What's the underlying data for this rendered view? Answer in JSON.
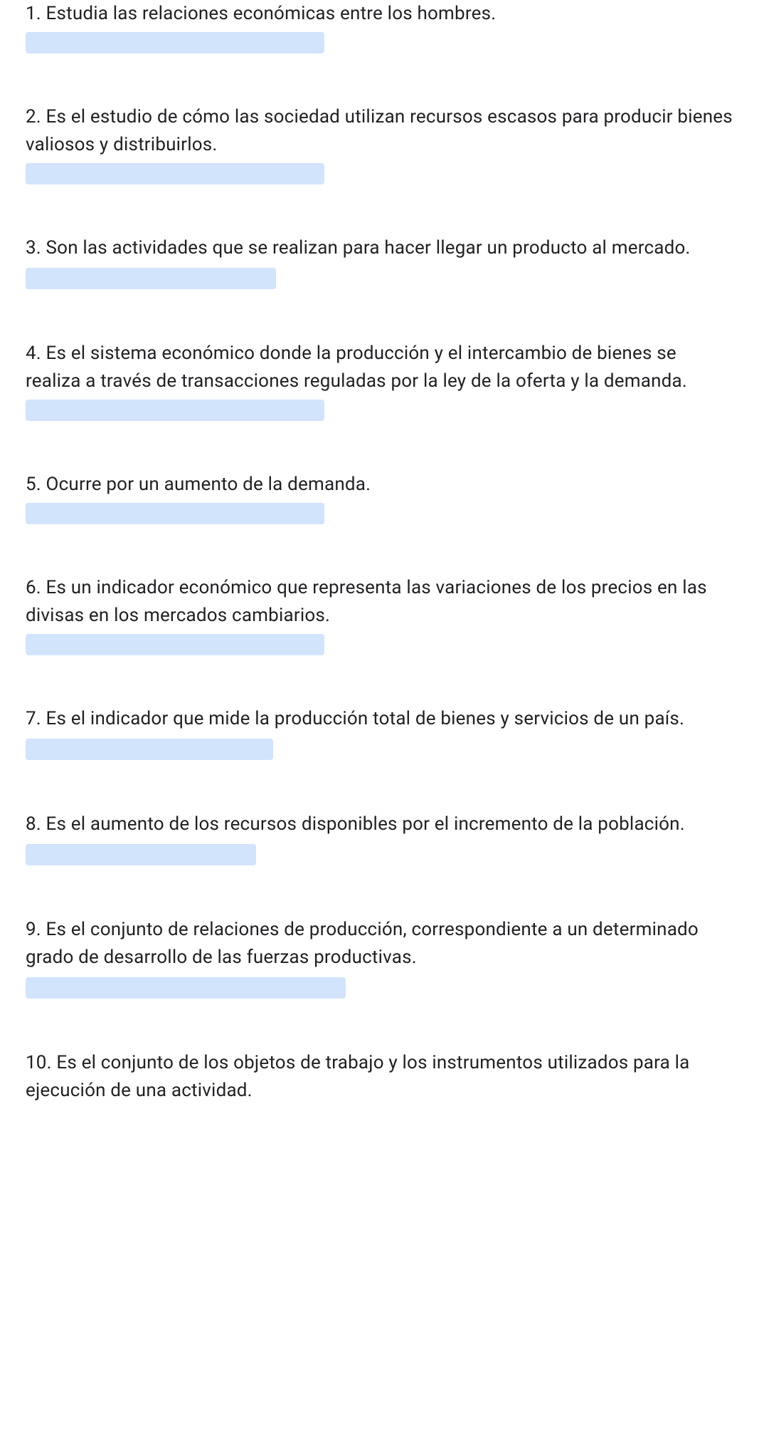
{
  "questions": [
    {
      "number": "1.",
      "text": "Estudia las relaciones económicas entre los hombres.",
      "blank_position": "after",
      "blank_width": "blank-w1"
    },
    {
      "number": "2.",
      "text": "Es el estudio de cómo las sociedad utilizan recursos escasos para producir bienes valiosos y distribuirlos.",
      "blank_position": "after",
      "blank_width": "blank-w1"
    },
    {
      "number": "3.",
      "text": "Son las actividades que se realizan para hacer llegar un producto al mercado.",
      "blank_position": "inline",
      "blank_width": "blank-w2"
    },
    {
      "number": "4.",
      "text": "Es el sistema económico donde la producción y el intercambio de bienes se realiza a través de transacciones reguladas por la ley de la oferta y la demanda.",
      "blank_position": "after",
      "blank_width": "blank-w1"
    },
    {
      "number": "5.",
      "text": "Ocurre por un aumento de la demanda.",
      "blank_position": "after",
      "blank_width": "blank-w1"
    },
    {
      "number": "6.",
      "text": "Es un indicador económico que representa las variaciones de los precios en las divisas en los mercados cambiarios.",
      "blank_position": "after",
      "blank_width": "blank-w1"
    },
    {
      "number": "7.",
      "text": "Es el indicador que mide la producción total de bienes y servicios de un país.",
      "blank_position": "inline",
      "blank_width": "blank-w3"
    },
    {
      "number": "8.",
      "text": "Es el aumento de los recursos disponibles por el incremento de la población.",
      "blank_position": "inline",
      "blank_width": "blank-w4"
    },
    {
      "number": "9.",
      "text": "Es el conjunto de relaciones de producción, correspondiente a un determinado grado de desarrollo de las fuerzas productivas.",
      "blank_position": "inline",
      "blank_width": "blank-w5"
    },
    {
      "number": "10.",
      "text": "Es el conjunto de los objetos de trabajo y los instrumentos utilizados para la ejecución de una actividad.",
      "blank_position": "none",
      "blank_width": ""
    }
  ],
  "colors": {
    "blank_bg": "#d2e3fc",
    "text": "#202124",
    "background": "#ffffff"
  },
  "typography": {
    "font_size": 26,
    "line_height": 1.5
  }
}
